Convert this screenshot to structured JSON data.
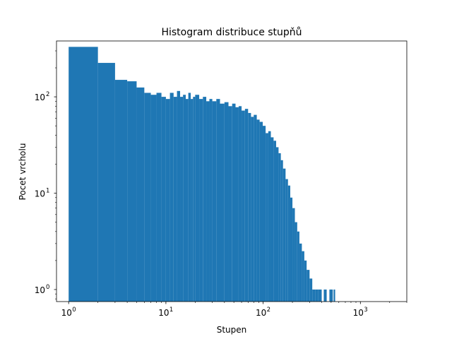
{
  "chart_data": {
    "type": "bar",
    "title": "Histogram distribuce stupňů",
    "xlabel": "Stupen",
    "ylabel": "Pocet vrcholu",
    "xscale": "log",
    "yscale": "log",
    "xlim": [
      0.75,
      3000
    ],
    "ylim": [
      0.75,
      380
    ],
    "x_ticks": [
      {
        "value": 1,
        "base": "10",
        "exp": "0"
      },
      {
        "value": 10,
        "base": "10",
        "exp": "1"
      },
      {
        "value": 100,
        "base": "10",
        "exp": "2"
      },
      {
        "value": 1000,
        "base": "10",
        "exp": "3"
      }
    ],
    "y_ticks": [
      {
        "value": 1,
        "base": "10",
        "exp": "0"
      },
      {
        "value": 10,
        "base": "10",
        "exp": "1"
      },
      {
        "value": 100,
        "base": "10",
        "exp": "2"
      }
    ],
    "bar_color": "#1f77b4",
    "grid": false,
    "bins": [
      [
        1,
        2,
        330
      ],
      [
        2,
        3,
        225
      ],
      [
        3,
        4,
        150
      ],
      [
        4,
        5,
        145
      ],
      [
        5,
        6,
        125
      ],
      [
        6,
        7,
        110
      ],
      [
        7,
        8,
        105
      ],
      [
        8,
        9,
        110
      ],
      [
        9,
        10,
        100
      ],
      [
        10,
        11,
        95
      ],
      [
        11,
        12,
        110
      ],
      [
        12,
        13,
        100
      ],
      [
        13,
        14,
        115
      ],
      [
        14,
        15,
        100
      ],
      [
        15,
        16,
        105
      ],
      [
        16,
        17,
        95
      ],
      [
        17,
        18,
        110
      ],
      [
        18,
        19,
        95
      ],
      [
        19,
        20,
        100
      ],
      [
        20,
        22,
        105
      ],
      [
        22,
        24,
        95
      ],
      [
        24,
        26,
        100
      ],
      [
        26,
        28,
        90
      ],
      [
        28,
        30,
        95
      ],
      [
        30,
        33,
        90
      ],
      [
        33,
        36,
        95
      ],
      [
        36,
        40,
        85
      ],
      [
        40,
        44,
        88
      ],
      [
        44,
        48,
        80
      ],
      [
        48,
        52,
        85
      ],
      [
        52,
        56,
        78
      ],
      [
        56,
        60,
        80
      ],
      [
        60,
        65,
        72
      ],
      [
        65,
        70,
        75
      ],
      [
        70,
        75,
        68
      ],
      [
        75,
        80,
        62
      ],
      [
        80,
        86,
        65
      ],
      [
        86,
        92,
        58
      ],
      [
        92,
        99,
        55
      ],
      [
        99,
        106,
        50
      ],
      [
        106,
        113,
        42
      ],
      [
        113,
        120,
        44
      ],
      [
        120,
        128,
        38
      ],
      [
        128,
        136,
        35
      ],
      [
        136,
        144,
        30
      ],
      [
        144,
        152,
        26
      ],
      [
        152,
        160,
        22
      ],
      [
        160,
        170,
        18
      ],
      [
        170,
        180,
        14
      ],
      [
        180,
        190,
        12
      ],
      [
        190,
        200,
        9
      ],
      [
        200,
        212,
        7
      ],
      [
        212,
        224,
        5
      ],
      [
        224,
        236,
        4
      ],
      [
        236,
        250,
        3
      ],
      [
        250,
        265,
        2.5
      ],
      [
        265,
        280,
        2
      ],
      [
        280,
        300,
        1.6
      ],
      [
        300,
        320,
        1.3
      ],
      [
        320,
        345,
        1
      ],
      [
        345,
        370,
        1
      ],
      [
        370,
        400,
        1
      ],
      [
        420,
        450,
        1
      ],
      [
        480,
        520,
        1
      ],
      [
        530,
        550,
        1
      ]
    ]
  }
}
